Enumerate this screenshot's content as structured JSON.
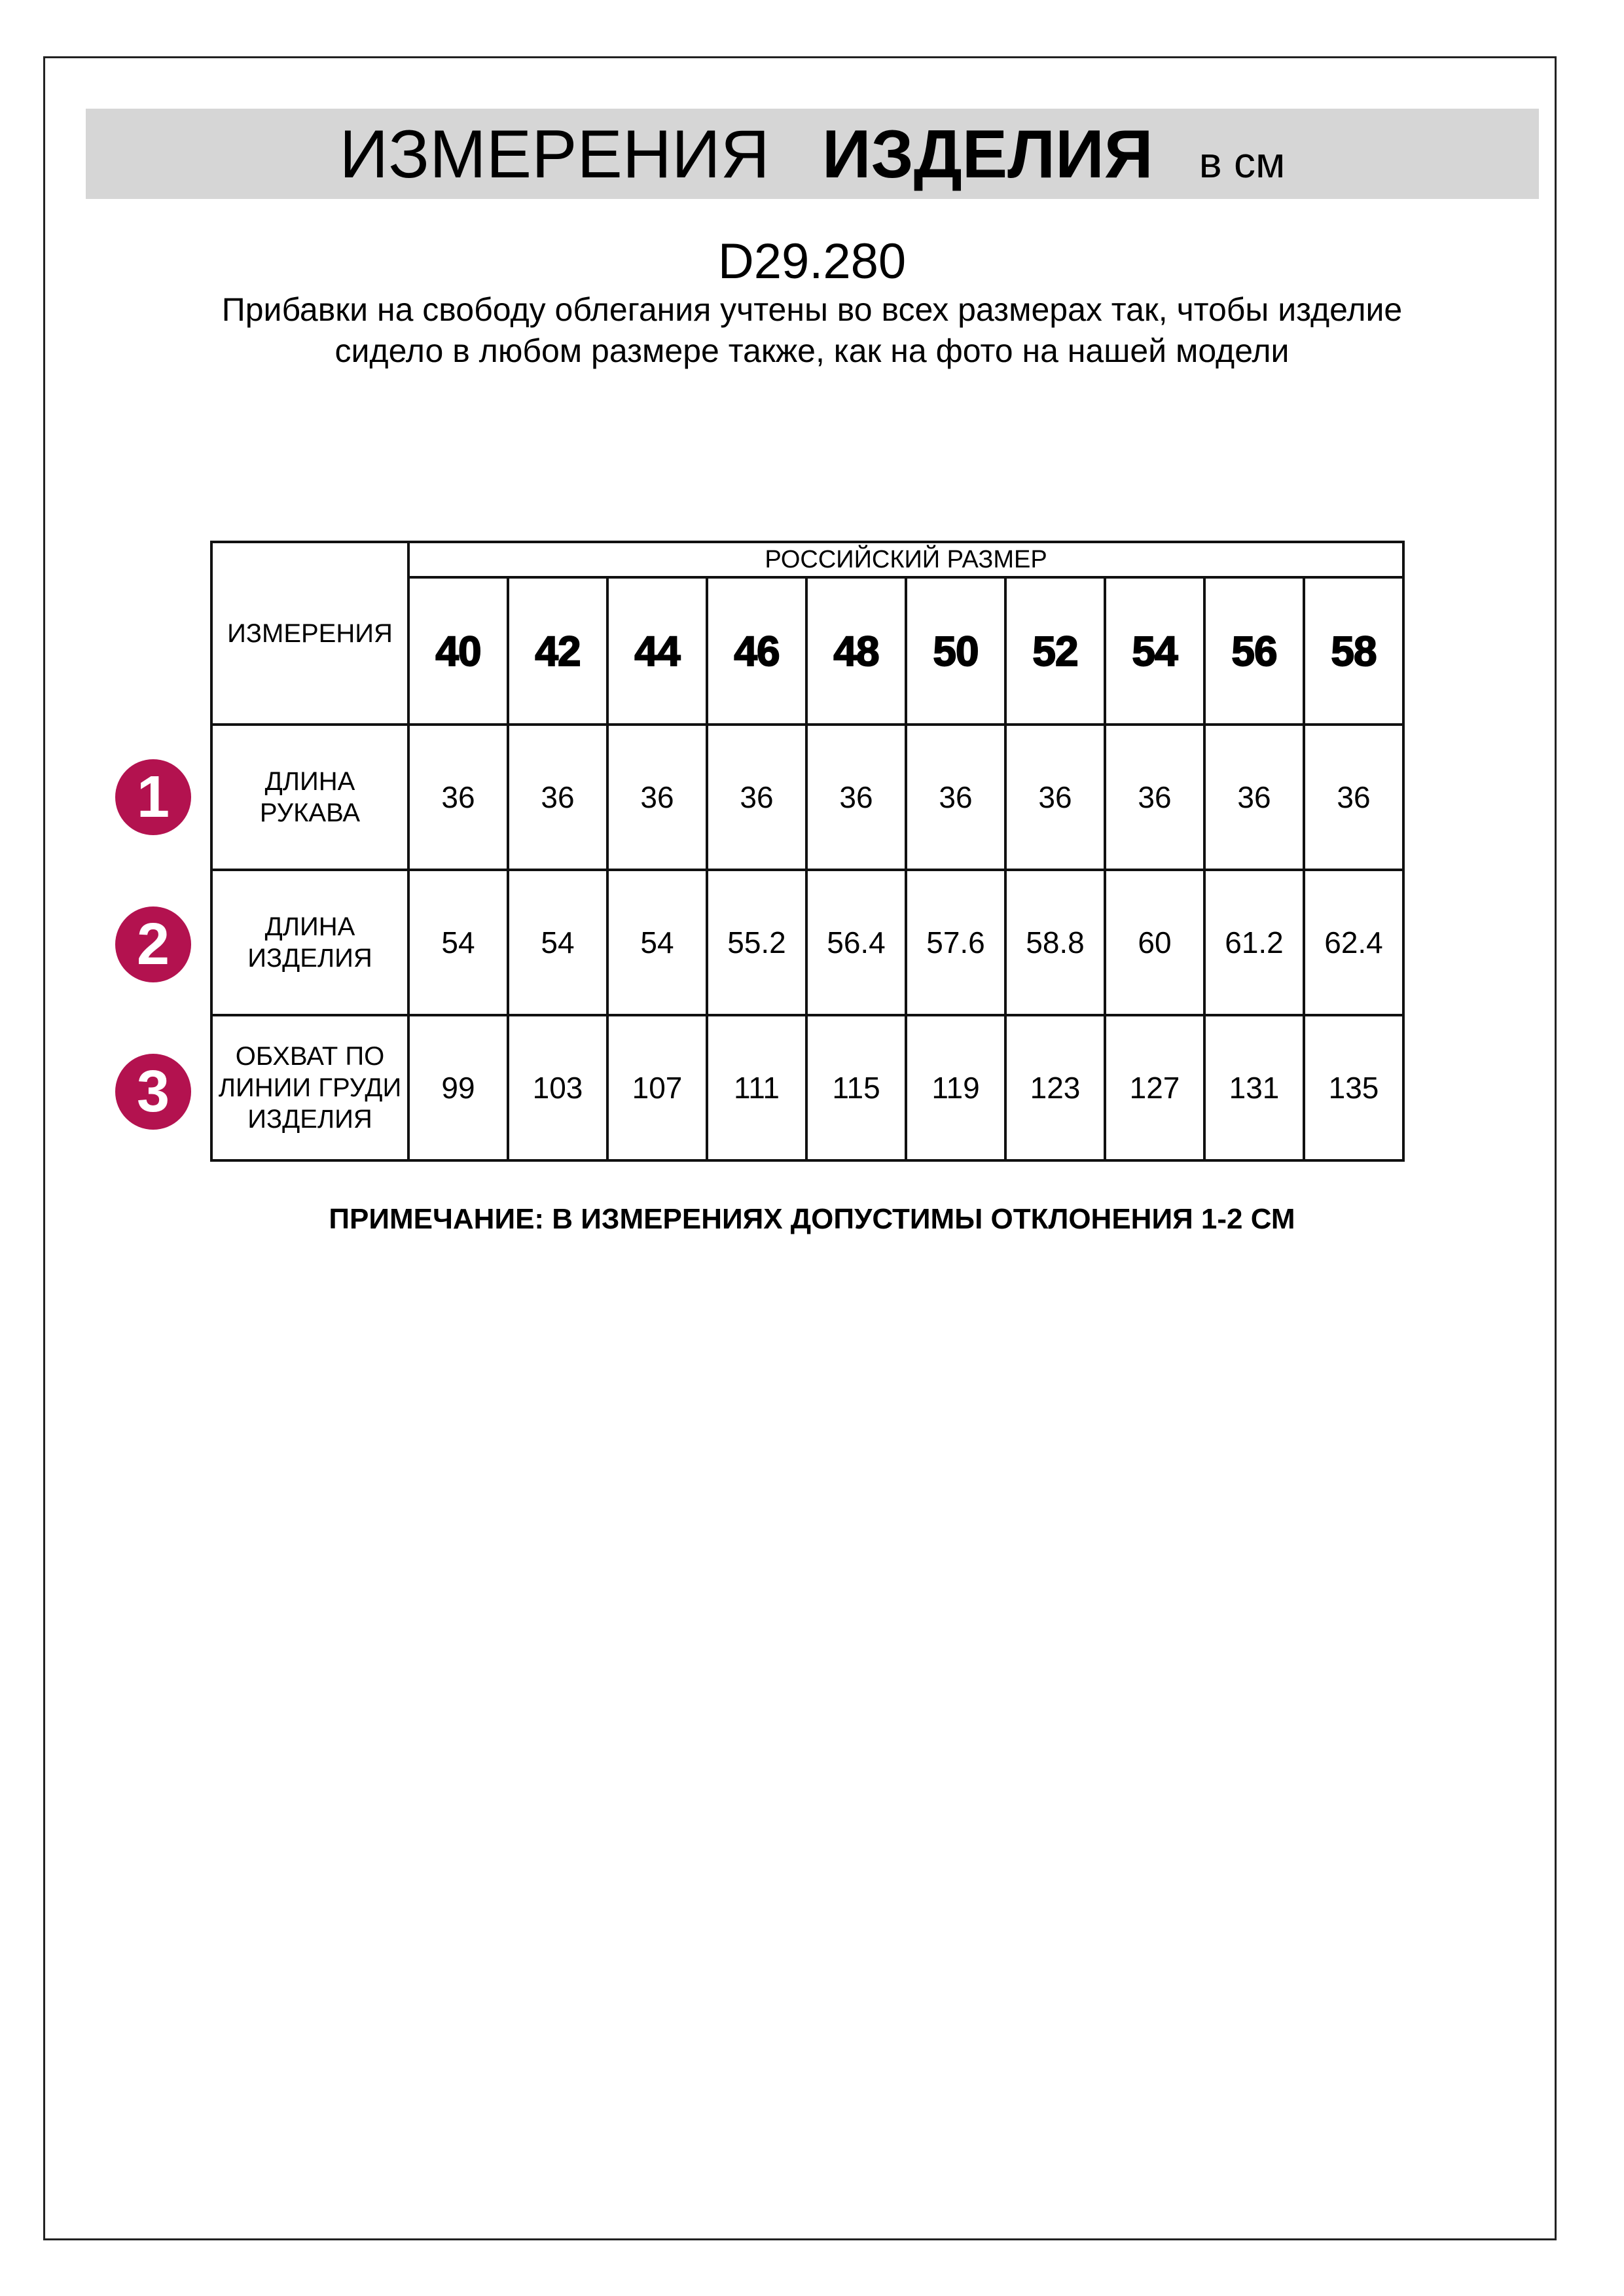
{
  "header": {
    "title_regular": "ИЗМЕРЕНИЯ",
    "title_bold": "ИЗДЕЛИЯ",
    "title_unit": "в см"
  },
  "product_code": "D29.280",
  "description": "Прибавки на свободу облегания учтены во всех размерах так, чтобы изделие сидело в любом размере также, как на фото на нашей модели",
  "accent_color": "#b3124f",
  "table": {
    "corner_label": "ИЗМЕРЕНИЯ",
    "size_group_label": "РОССИЙСКИЙ РАЗМЕР",
    "sizes": [
      "40",
      "42",
      "44",
      "46",
      "48",
      "50",
      "52",
      "54",
      "56",
      "58"
    ],
    "rows": [
      {
        "badge": "1",
        "label": "ДЛИНА РУКАВА",
        "values": [
          "36",
          "36",
          "36",
          "36",
          "36",
          "36",
          "36",
          "36",
          "36",
          "36"
        ]
      },
      {
        "badge": "2",
        "label": "ДЛИНА ИЗДЕЛИЯ",
        "values": [
          "54",
          "54",
          "54",
          "55.2",
          "56.4",
          "57.6",
          "58.8",
          "60",
          "61.2",
          "62.4"
        ]
      },
      {
        "badge": "3",
        "label": "ОБХВАТ ПО ЛИНИИ ГРУДИ ИЗДЕЛИЯ",
        "values": [
          "99",
          "103",
          "107",
          "111",
          "115",
          "119",
          "123",
          "127",
          "131",
          "135"
        ]
      }
    ]
  },
  "note": "ПРИМЕЧАНИЕ: В ИЗМЕРЕНИЯХ ДОПУСТИМЫ ОТКЛОНЕНИЯ 1-2 СМ"
}
